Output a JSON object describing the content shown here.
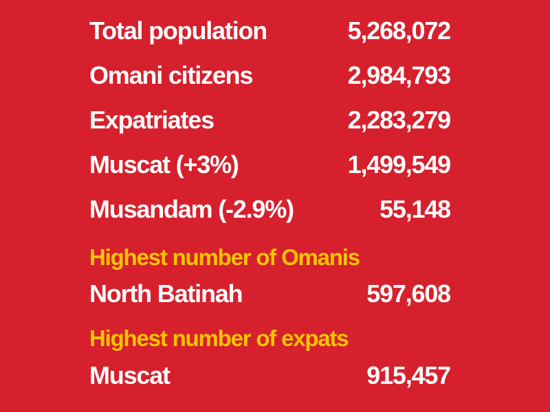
{
  "rows": [
    {
      "label": "Total population",
      "value": "5,268,072"
    },
    {
      "label": "Omani citizens",
      "value": "2,984,793"
    },
    {
      "label": "Expatriates",
      "value": "2,283,279"
    },
    {
      "label": "Muscat (+3%)",
      "value": "1,499,549"
    },
    {
      "label": "Musandam (-2.9%)",
      "value": "55,148"
    }
  ],
  "highlights": [
    {
      "heading": "Highest number of Omanis",
      "label": "North Batinah",
      "value": "597,608"
    },
    {
      "heading": "Highest number of expats",
      "label": "Muscat",
      "value": "915,457"
    }
  ]
}
